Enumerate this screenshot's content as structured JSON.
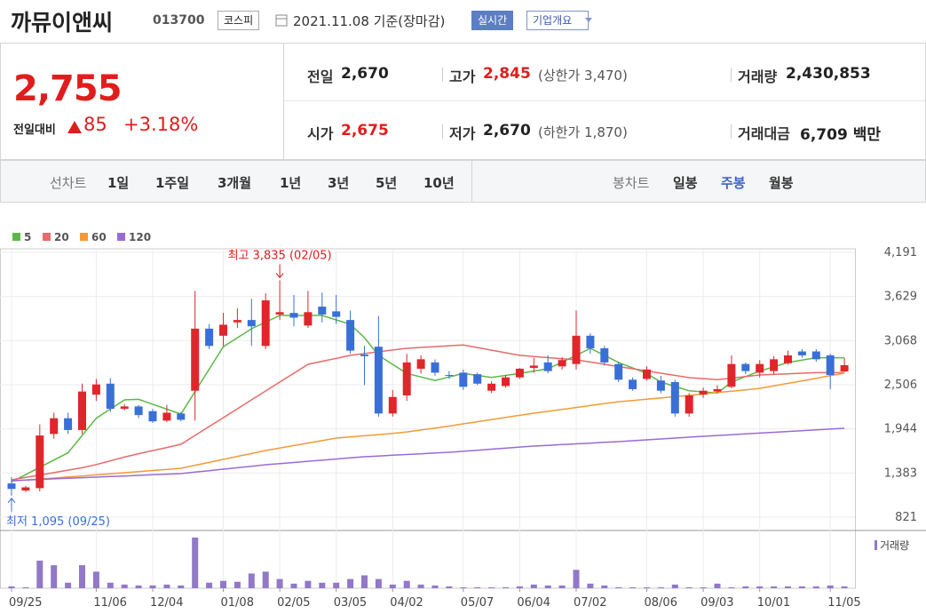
{
  "header": {
    "name": "까뮤이앤씨",
    "code": "013700",
    "market": "코스피",
    "date": "2021.11.08 기준(장마감)",
    "realtime": "실시간",
    "company": "기업개요"
  },
  "quote": {
    "price": "2,755",
    "change_label": "전일대비",
    "change": "85",
    "change_pct": "+3.18%",
    "rows": [
      [
        {
          "label": "전일",
          "value": "2,670"
        },
        {
          "label": "고가",
          "value": "2,845",
          "note": "(상한가 3,470)"
        },
        {
          "label": "거래량",
          "value": "2,430,853"
        }
      ],
      [
        {
          "label": "시가",
          "value": "2,675"
        },
        {
          "label": "저가",
          "value": "2,670",
          "note": "(하한가 1,870)"
        },
        {
          "label": "거래대금",
          "value": "6,709 백만"
        }
      ]
    ]
  },
  "tabs": {
    "line_label": "선차트",
    "line": [
      "1일",
      "1주일",
      "3개월",
      "1년",
      "3년",
      "5년",
      "10년"
    ],
    "candle_label": "봉차트",
    "candle": [
      "일봉",
      "주봉",
      "월봉"
    ],
    "active": "주봉"
  },
  "chart_data": {
    "type": "candlestick",
    "categories": [
      "09/25",
      null,
      null,
      null,
      null,
      null,
      "11/06",
      null,
      null,
      null,
      "12/04",
      null,
      null,
      null,
      null,
      "01/08",
      null,
      null,
      null,
      "02/05",
      null,
      null,
      null,
      "03/05",
      null,
      null,
      null,
      "04/02",
      null,
      null,
      null,
      null,
      "05/07",
      null,
      null,
      null,
      "06/04",
      null,
      null,
      null,
      "07/02",
      null,
      null,
      null,
      null,
      "08/06",
      null,
      null,
      null,
      "09/03",
      null,
      null,
      null,
      "10/01",
      null,
      null,
      null,
      null,
      "11/05",
      null
    ],
    "open": [
      1250,
      1160,
      1190,
      1880,
      2080,
      1930,
      2380,
      2520,
      2200,
      2230,
      2170,
      2050,
      2140,
      2430,
      3220,
      3130,
      3300,
      3330,
      3000,
      3400,
      3420,
      3260,
      3500,
      3440,
      3330,
      2890,
      2990,
      2140,
      2370,
      2710,
      2790,
      2630,
      2660,
      2640,
      2430,
      2490,
      2600,
      2720,
      2790,
      2740,
      2770,
      3130,
      2970,
      2770,
      2570,
      2580,
      2560,
      2540,
      2140,
      2380,
      2420,
      2480,
      2770,
      2660,
      2680,
      2780,
      2930,
      2930,
      2880,
      2675
    ],
    "high": [
      1330,
      1220,
      2000,
      2150,
      2150,
      2520,
      2580,
      2590,
      2260,
      2250,
      2200,
      2250,
      2160,
      3700,
      3280,
      3420,
      3480,
      3600,
      3670,
      3835,
      3650,
      3700,
      3680,
      3650,
      3450,
      3000,
      3380,
      2440,
      2900,
      2880,
      2830,
      2680,
      2700,
      2660,
      2550,
      2630,
      2720,
      2850,
      2880,
      2860,
      3450,
      3160,
      3000,
      2800,
      2600,
      2740,
      2620,
      2570,
      2400,
      2470,
      2500,
      2880,
      2790,
      2820,
      2870,
      2940,
      2960,
      2960,
      2900,
      2845
    ],
    "low": [
      1095,
      1140,
      1150,
      1820,
      1880,
      1880,
      2300,
      2160,
      2180,
      2080,
      2020,
      2030,
      2040,
      2050,
      2960,
      3000,
      3230,
      3000,
      2960,
      3330,
      3250,
      3230,
      3300,
      3280,
      2900,
      2500,
      2100,
      2100,
      2300,
      2650,
      2620,
      2580,
      2440,
      2500,
      2400,
      2470,
      2580,
      2660,
      2650,
      2700,
      2700,
      2900,
      2750,
      2540,
      2430,
      2560,
      2400,
      2100,
      2100,
      2340,
      2400,
      2460,
      2640,
      2600,
      2640,
      2760,
      2850,
      2800,
      2450,
      2670
    ],
    "close": [
      1180,
      1200,
      1860,
      2080,
      1930,
      2420,
      2510,
      2200,
      2230,
      2120,
      2040,
      2150,
      2060,
      3220,
      3000,
      3270,
      3330,
      3250,
      3580,
      3430,
      3360,
      3430,
      3400,
      3370,
      2940,
      2870,
      2140,
      2350,
      2790,
      2830,
      2660,
      2620,
      2480,
      2520,
      2520,
      2600,
      2710,
      2750,
      2680,
      2820,
      3130,
      2970,
      2790,
      2570,
      2450,
      2700,
      2430,
      2140,
      2370,
      2430,
      2450,
      2770,
      2680,
      2770,
      2830,
      2880,
      2880,
      2830,
      2630,
      2755
    ],
    "up_color": "#e0262b",
    "down_color": "#3a6fd8",
    "series": [
      {
        "name": "5",
        "color": "#5cb947",
        "values": [
          1270,
          1362,
          1455,
          1548,
          1640,
          1860,
          2080,
          2197,
          2314,
          2320,
          2258,
          2195,
          2133,
          2419,
          2704,
          2990,
          3104,
          3218,
          3303,
          3388,
          3388,
          3388,
          3388,
          3332,
          3275,
          3105,
          2880,
          2765,
          2650,
          2605,
          2560,
          2605,
          2650,
          2625,
          2600,
          2625,
          2650,
          2680,
          2710,
          2795,
          2880,
          2970,
          2880,
          2790,
          2720,
          2650,
          2540,
          2485,
          2430,
          2415,
          2400,
          2540,
          2610,
          2680,
          2735,
          2790,
          2820,
          2850,
          2850,
          2850
        ]
      },
      {
        "name": "20",
        "color": "#e86a6a",
        "values": [
          1296,
          1327,
          1357,
          1388,
          1419,
          1450,
          1490,
          1538,
          1585,
          1628,
          1668,
          1708,
          1748,
          1861,
          1974,
          2087,
          2200,
          2314,
          2427,
          2540,
          2653,
          2766,
          2804,
          2842,
          2880,
          2903,
          2925,
          2948,
          2970,
          2981,
          2991,
          3002,
          3013,
          2980,
          2946,
          2913,
          2880,
          2866,
          2851,
          2837,
          2823,
          2795,
          2766,
          2738,
          2710,
          2682,
          2653,
          2625,
          2597,
          2584,
          2570,
          2590,
          2610,
          2630,
          2638,
          2645,
          2653,
          2660,
          2660,
          2660
        ]
      },
      {
        "name": "60",
        "color": "#f39a36",
        "values": [
          1280,
          1293,
          1306,
          1319,
          1332,
          1345,
          1359,
          1373,
          1387,
          1401,
          1415,
          1429,
          1443,
          1481,
          1518,
          1556,
          1594,
          1631,
          1669,
          1701,
          1732,
          1764,
          1795,
          1827,
          1842,
          1857,
          1872,
          1887,
          1905,
          1930,
          1955,
          1980,
          2008,
          2035,
          2062,
          2090,
          2117,
          2144,
          2168,
          2193,
          2217,
          2241,
          2266,
          2290,
          2306,
          2322,
          2338,
          2354,
          2370,
          2388,
          2406,
          2424,
          2442,
          2460,
          2492,
          2524,
          2556,
          2589,
          2621,
          2653
        ]
      },
      {
        "name": "120",
        "color": "#9a6bd4",
        "values": [
          1285,
          1293,
          1300,
          1308,
          1315,
          1323,
          1330,
          1338,
          1345,
          1353,
          1360,
          1368,
          1375,
          1394,
          1413,
          1432,
          1450,
          1469,
          1488,
          1503,
          1517,
          1532,
          1546,
          1561,
          1575,
          1590,
          1599,
          1609,
          1618,
          1627,
          1637,
          1646,
          1659,
          1673,
          1686,
          1699,
          1713,
          1726,
          1735,
          1745,
          1754,
          1763,
          1773,
          1782,
          1793,
          1805,
          1816,
          1827,
          1839,
          1850,
          1860,
          1870,
          1881,
          1891,
          1901,
          1911,
          1921,
          1932,
          1942,
          1952
        ]
      }
    ],
    "volume_name": "거래량",
    "volume_color": "#9278c8",
    "volume": [
      2000000,
      1000000,
      30000000,
      25000000,
      6000000,
      25000000,
      18000000,
      6000000,
      4000000,
      3000000,
      3000000,
      4000000,
      3000000,
      55000000,
      6000000,
      8000000,
      7000000,
      16000000,
      18000000,
      10000000,
      5000000,
      8000000,
      6000000,
      6000000,
      10000000,
      14000000,
      10000000,
      4000000,
      8000000,
      4000000,
      3000000,
      2000000,
      1000000,
      1000000,
      1000000,
      1000000,
      2000000,
      4000000,
      3000000,
      3000000,
      20000000,
      5000000,
      3000000,
      1000000,
      1000000,
      1000000,
      1000000,
      4000000,
      1000000,
      1000000,
      5000000,
      1000000,
      2000000,
      2000000,
      2000000,
      2000000,
      2000000,
      2000000,
      3000000,
      2000000
    ],
    "ylim": [
      821,
      4191
    ],
    "yticks": [
      {
        "value": 821,
        "label": "821"
      },
      {
        "value": 1383,
        "label": "1,383"
      },
      {
        "value": 1944,
        "label": "1,944"
      },
      {
        "value": 2506,
        "label": "2,506"
      },
      {
        "value": 3068,
        "label": "3,068"
      },
      {
        "value": 3629,
        "label": "3,629"
      },
      {
        "value": 4191,
        "label": "4,191"
      }
    ],
    "annotations": {
      "high": "최고 3,835 (02/05)",
      "low": "최저 1,095 (09/25)"
    },
    "grid": true
  }
}
